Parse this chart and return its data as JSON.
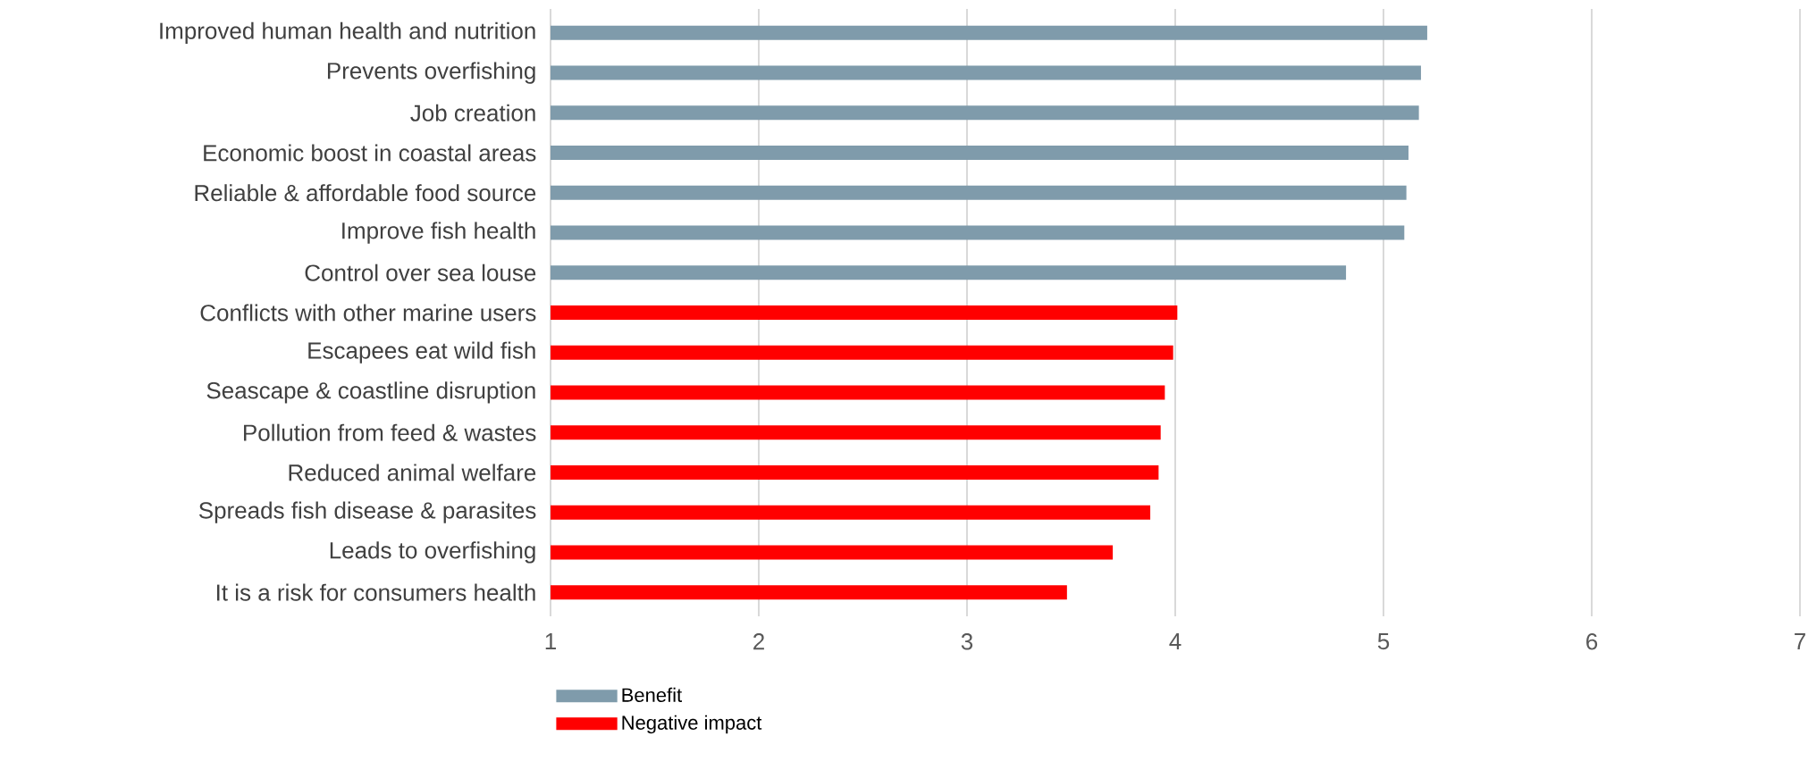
{
  "chart_data": {
    "type": "bar",
    "orientation": "horizontal",
    "categories": [
      "Improved human health and nutrition",
      "Prevents overfishing",
      "Job creation",
      "Economic boost in coastal areas",
      "Reliable & affordable food source",
      "Improve fish health",
      "Control over sea louse",
      "Conflicts with other marine users",
      "Escapees eat wild fish",
      "Seascape & coastline disruption",
      "Pollution from feed & wastes",
      "Reduced animal welfare",
      "Spreads fish disease & parasites",
      "Leads to overfishing",
      "It is a risk for consumers health"
    ],
    "series": [
      {
        "name": "Benefit",
        "color": "#7f9bab",
        "values": [
          5.21,
          5.18,
          5.17,
          5.12,
          5.11,
          5.1,
          4.82,
          null,
          null,
          null,
          null,
          null,
          null,
          null,
          null
        ]
      },
      {
        "name": "Negative impact",
        "color": "#ff0000",
        "values": [
          null,
          null,
          null,
          null,
          null,
          null,
          null,
          4.01,
          3.99,
          3.95,
          3.93,
          3.92,
          3.88,
          3.7,
          3.48
        ]
      }
    ],
    "xlim": [
      1,
      7
    ],
    "xticks": [
      1,
      2,
      3,
      4,
      5,
      6,
      7
    ],
    "grid": "x",
    "legend": "bottom"
  }
}
